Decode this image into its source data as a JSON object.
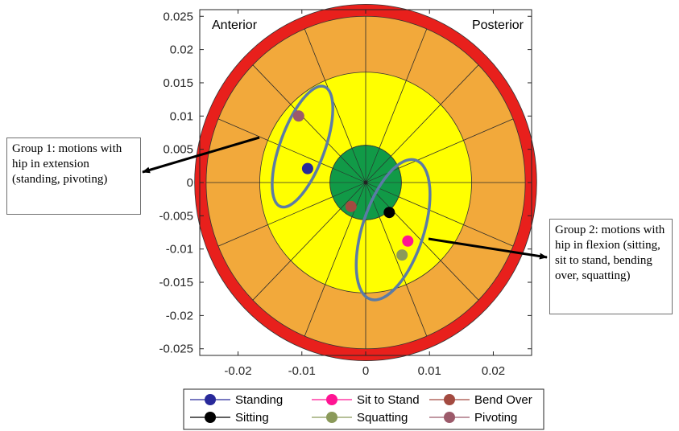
{
  "chart_data": {
    "type": "scatter",
    "title": "",
    "xlabel": "",
    "ylabel": "",
    "xlim": [
      -0.026,
      0.026
    ],
    "ylim": [
      -0.026,
      0.026
    ],
    "xticks": [
      -0.02,
      -0.01,
      0,
      0.01,
      0.02
    ],
    "yticks": [
      0.025,
      0.02,
      0.015,
      0.01,
      0.005,
      0,
      -0.005,
      -0.01,
      -0.015,
      -0.02,
      -0.025
    ],
    "corner_labels": {
      "left": "Anterior",
      "right": "Posterior"
    },
    "target": {
      "rings": [
        {
          "radius": 0.0268,
          "color": "#e8201c"
        },
        {
          "radius": 0.025,
          "color": "#f2a93b"
        },
        {
          "radius": 0.0166,
          "color": "#ffff00"
        },
        {
          "radius": 0.0056,
          "color": "#119a47"
        }
      ],
      "sector_lines": 16
    },
    "series": [
      {
        "name": "Standing",
        "color": "#28299a",
        "x": -0.0091,
        "y": 0.0021
      },
      {
        "name": "Sit to Stand",
        "color": "#ff1493",
        "x": 0.0066,
        "y": -0.0088
      },
      {
        "name": "Bend Over",
        "color": "#a34a40",
        "x": -0.0023,
        "y": -0.0036
      },
      {
        "name": "Sitting",
        "color": "#000000",
        "x": 0.0037,
        "y": -0.0045
      },
      {
        "name": "Squatting",
        "color": "#8b9a5a",
        "x": 0.0057,
        "y": -0.0109
      },
      {
        "name": "Pivoting",
        "color": "#9c5a6a",
        "x": -0.0105,
        "y": 0.01
      }
    ],
    "groups": [
      {
        "cx": -0.0099,
        "cy": 0.0054,
        "rx": 0.0035,
        "ry": 0.0096,
        "angle_deg": 20,
        "color": "#5b7ba6"
      },
      {
        "cx": 0.0043,
        "cy": -0.0071,
        "rx": 0.0048,
        "ry": 0.011,
        "angle_deg": 18,
        "color": "#5b7ba6"
      }
    ],
    "legend_position": "bottom"
  },
  "annotations": {
    "group1": "Group 1: motions with hip in extension (standing, pivoting)",
    "group2": "Group 2: motions with hip in flexion (sitting, sit to stand, bending over, squatting)"
  }
}
